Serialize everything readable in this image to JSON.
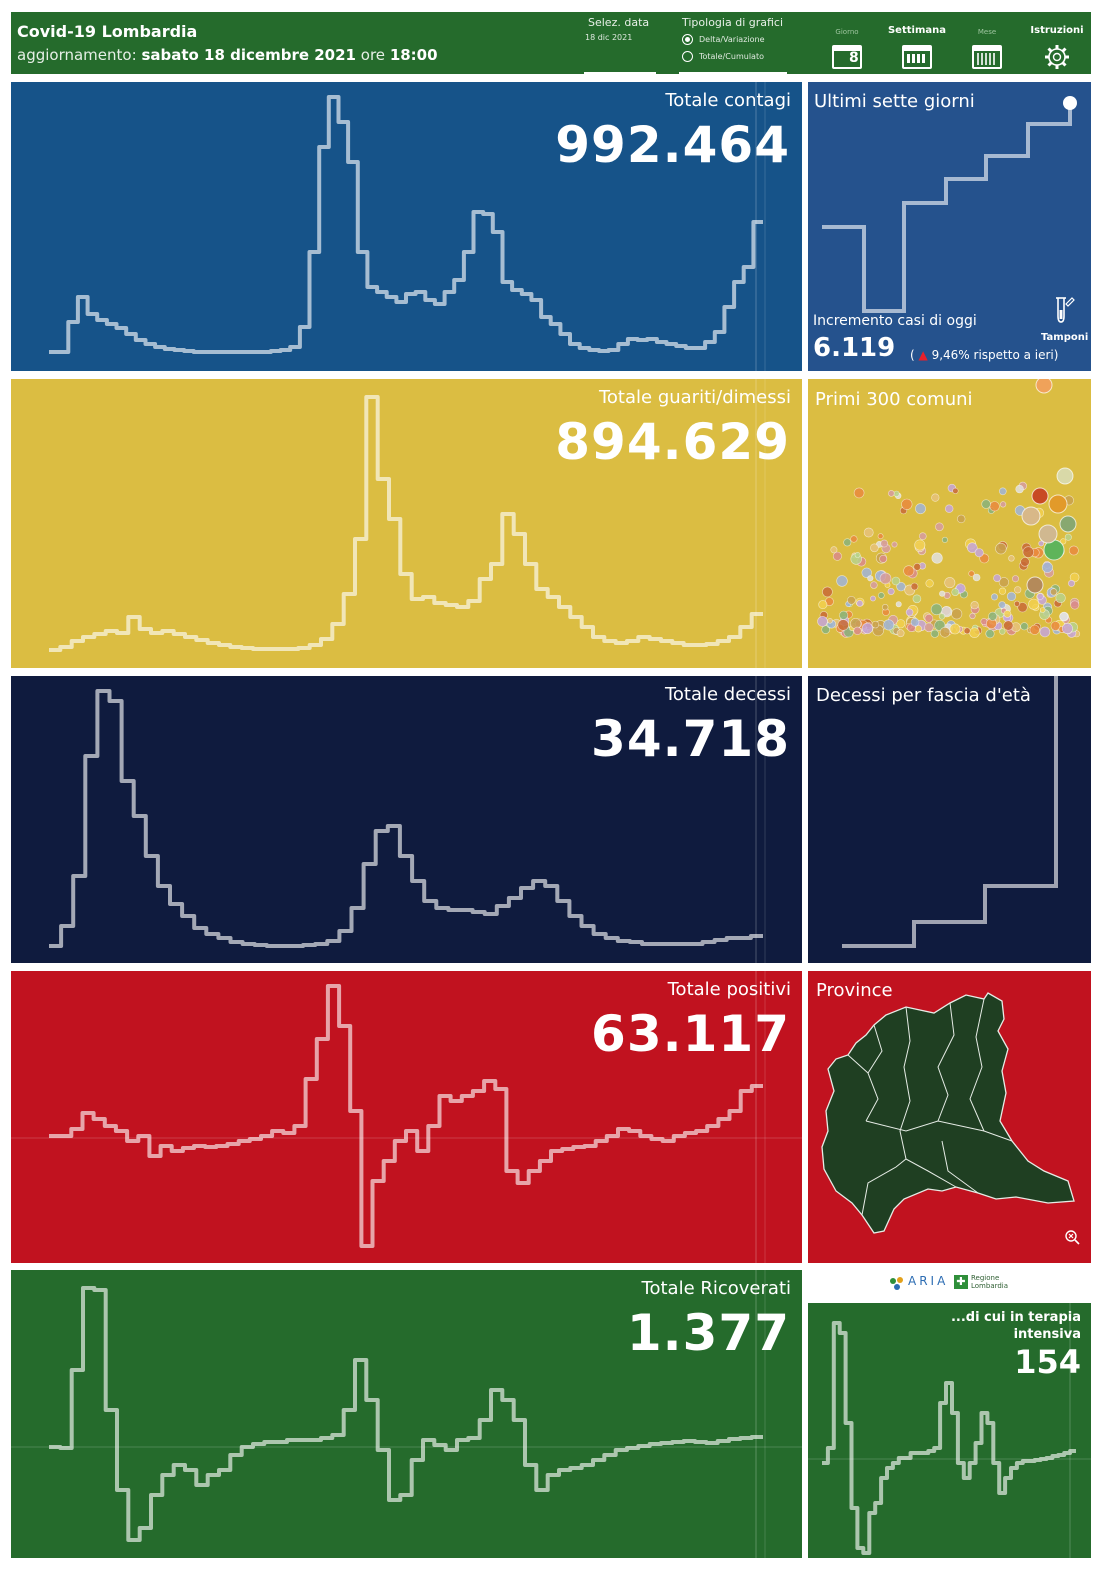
{
  "header": {
    "title": "Covid-19 Lombardia",
    "update_label": "aggiornamento:",
    "update_date": "sabato 18 dicembre 2021",
    "update_ore": "ore",
    "update_time": "18:00",
    "date_selector_label": "Selez. data",
    "date_selector_value": "18 dic 2021",
    "chart_type_label": "Tipologia di grafici",
    "chart_type_options": [
      "Delta/Variazione",
      "Totale/Cumulato"
    ],
    "chart_type_selected": "Delta/Variazione",
    "nav": {
      "giorno": "Giorno",
      "giorno_day": "8",
      "settimana": "Settimana",
      "mese": "Mese",
      "istruzioni": "Istruzioni"
    }
  },
  "colors": {
    "header": "#256b2c",
    "contagi": "#165389",
    "guariti": "#dbbd42",
    "decessi": "#0f1b3e",
    "positivi": "#c1121f",
    "ricoverati": "#256b2c",
    "settegiorni": "#25528d"
  },
  "contagi": {
    "title": "Totale contagi",
    "value": "992.464"
  },
  "guariti": {
    "title": "Totale guariti/dimessi",
    "value": "894.629"
  },
  "decessi": {
    "title": "Totale decessi",
    "value": "34.718"
  },
  "positivi": {
    "title": "Totale positivi",
    "value": "63.117"
  },
  "ricoverati": {
    "title": "Totale Ricoverati",
    "value": "1.377"
  },
  "sette_giorni": {
    "title": "Ultimi sette giorni",
    "increment_label": "Incremento casi di oggi",
    "increment_value": "6.119",
    "delta_text": "9,46% rispetto a  ieri)",
    "tamponi_label": "Tamponi"
  },
  "comuni": {
    "title": "Primi 300 comuni"
  },
  "eta": {
    "title": "Decessi per fascia d'età"
  },
  "province": {
    "title": "Province"
  },
  "terapia": {
    "title_line1": "...di cui in terapia",
    "title_line2": "intensiva",
    "value": "154"
  },
  "logos": {
    "aria": "ARIA",
    "regione_line1": "Regione",
    "regione_line2": "Lombardia"
  }
}
